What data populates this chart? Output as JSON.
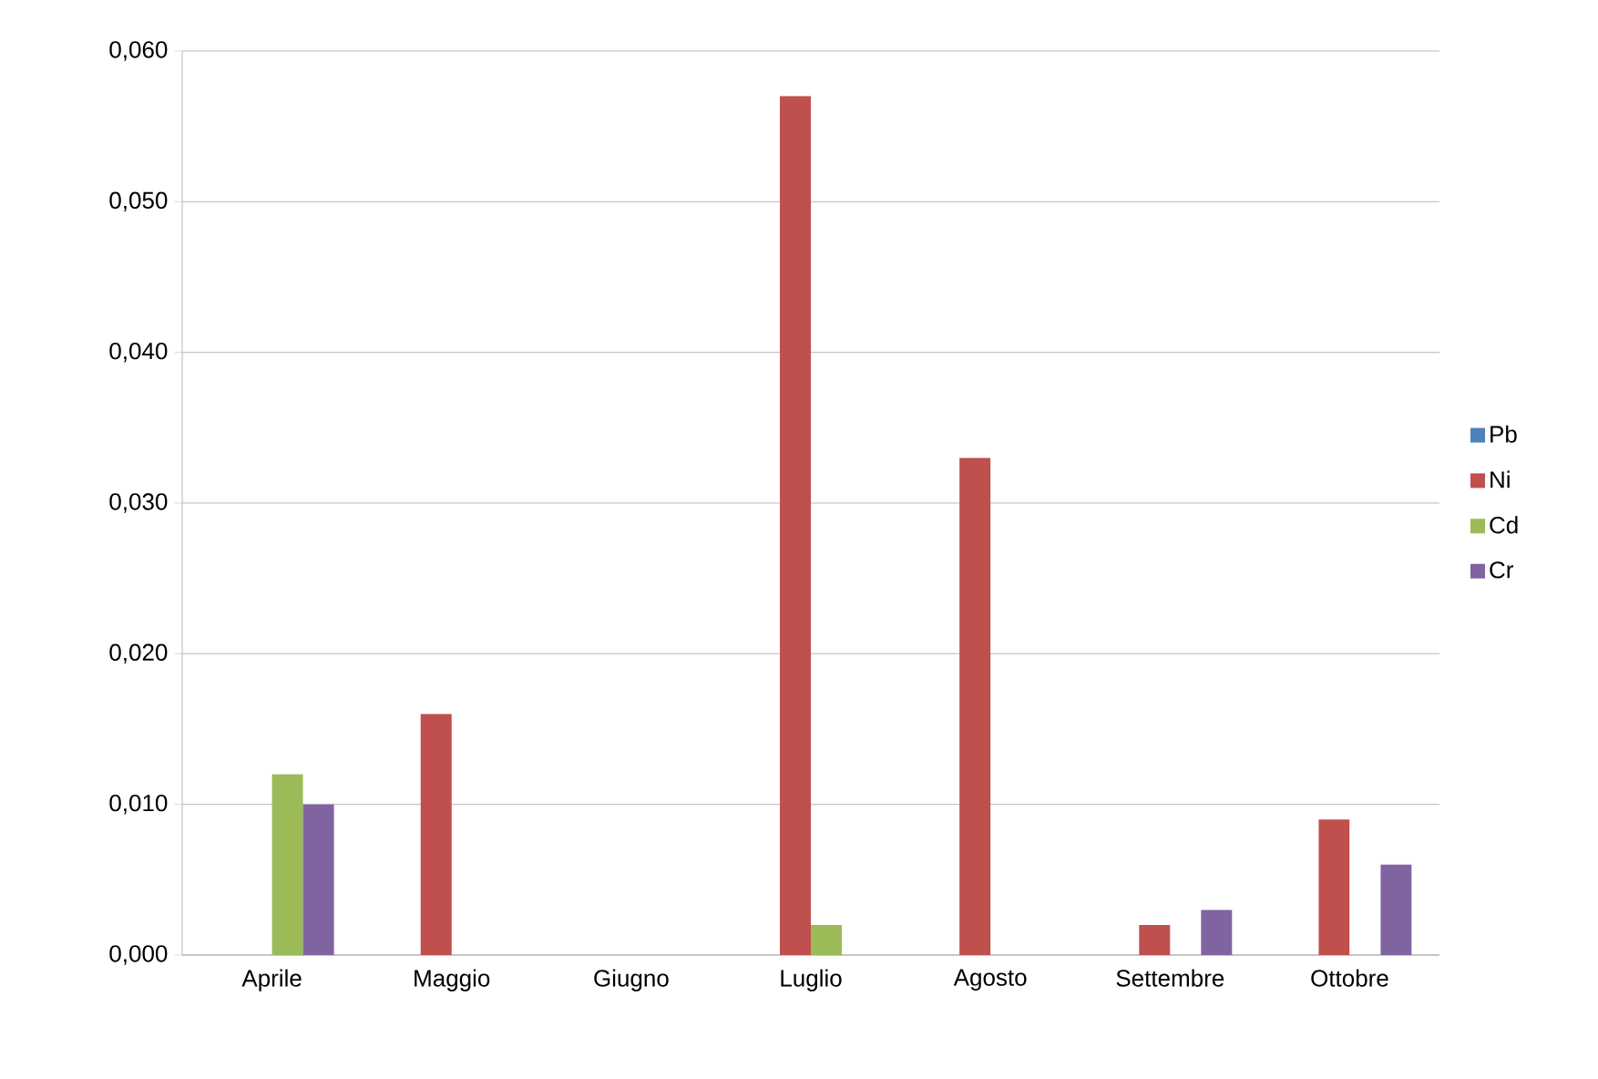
{
  "chart_data": {
    "type": "bar",
    "categories": [
      "Aprile",
      "Maggio",
      "Giugno",
      "Luglio",
      "Agosto",
      "Settembre",
      "Ottobre"
    ],
    "series": [
      {
        "name": "Pb",
        "color": "#4f81bd",
        "values": [
          0,
          0,
          0,
          0,
          0,
          0,
          0
        ]
      },
      {
        "name": "Ni",
        "color": "#c0504d",
        "values": [
          0,
          0.016,
          0,
          0.057,
          0.033,
          0.002,
          0.009
        ]
      },
      {
        "name": "Cd",
        "color": "#9bbb59",
        "values": [
          0.012,
          0,
          0,
          0.002,
          0,
          0,
          0
        ]
      },
      {
        "name": "Cr",
        "color": "#8064a2",
        "values": [
          0.01,
          0,
          0,
          0,
          0,
          0.003,
          0.006
        ]
      }
    ],
    "ylim": [
      0,
      0.06
    ],
    "yticks": [
      {
        "value": 0,
        "label": "0,000"
      },
      {
        "value": 0.01,
        "label": "0,010"
      },
      {
        "value": 0.02,
        "label": "0,020"
      },
      {
        "value": 0.03,
        "label": "0,030"
      },
      {
        "value": 0.04,
        "label": "0,040"
      },
      {
        "value": 0.05,
        "label": "0,050"
      },
      {
        "value": 0.06,
        "label": "0,060"
      }
    ],
    "grid": "y",
    "legend": "right"
  }
}
